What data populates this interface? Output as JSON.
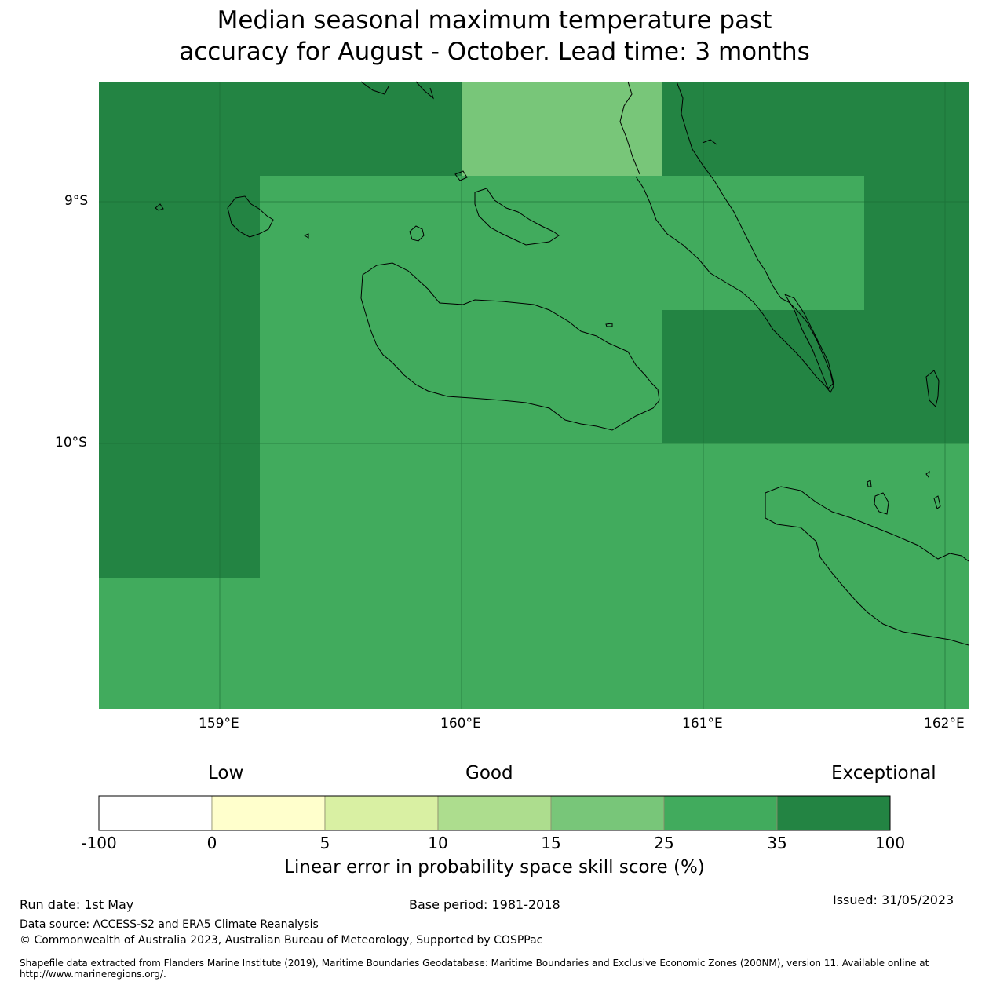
{
  "title": {
    "line1": "Median seasonal maximum temperature past",
    "line2": "accuracy for August - October. Lead time: 3 months"
  },
  "map": {
    "lon_range": [
      158.5,
      162.1
    ],
    "lat_range": [
      -11.1,
      -8.5
    ],
    "lon_ticks": [
      "159°E",
      "160°E",
      "161°E",
      "162°E"
    ],
    "lat_ticks": [
      "9°S",
      "10°S"
    ],
    "gridlines": true,
    "cells": [
      {
        "lon": [
          158.5,
          159.17
        ],
        "lat": [
          -10.56,
          -8.5
        ],
        "category": "35-100",
        "color": "#238443"
      },
      {
        "lon": [
          159.17,
          160.0
        ],
        "lat": [
          -8.89,
          -8.5
        ],
        "category": "35-100",
        "color": "#238443"
      },
      {
        "lon": [
          160.0,
          160.83
        ],
        "lat": [
          -8.89,
          -8.5
        ],
        "category": "15-25",
        "color": "#78c679"
      },
      {
        "lon": [
          160.83,
          162.1
        ],
        "lat": [
          -8.89,
          -8.5
        ],
        "category": "35-100",
        "color": "#238443"
      },
      {
        "lon": [
          161.67,
          162.1
        ],
        "lat": [
          -10.0,
          -8.89
        ],
        "category": "35-100",
        "color": "#238443"
      },
      {
        "lon": [
          160.83,
          161.67
        ],
        "lat": [
          -10.0,
          -9.44
        ],
        "category": "35-100",
        "color": "#238443"
      },
      {
        "lon": [
          158.5,
          162.1
        ],
        "lat": [
          -11.1,
          -8.5
        ],
        "category": "25-35",
        "color": "#41ab5d"
      }
    ]
  },
  "colorbar": {
    "categories": [
      "Low",
      "Good",
      "Exceptional"
    ],
    "ticks": [
      "-100",
      "0",
      "5",
      "10",
      "15",
      "25",
      "35",
      "100"
    ],
    "colors": [
      "#ffffff",
      "#ffffcc",
      "#d9f0a3",
      "#addd8e",
      "#78c679",
      "#41ab5d",
      "#238443"
    ],
    "label": "Linear error in probability space skill score (%)"
  },
  "footer": {
    "run_date": "Run date: 1st May",
    "base_period": "Base period: 1981-2018",
    "issued": "Issued: 31/05/2023",
    "data_source": "Data source: ACCESS-S2 and ERA5 Climate Reanalysis",
    "copyright": "© Commonwealth of Australia 2023, Australian Bureau of Meteorology, Supported by COSPPac",
    "shapefile": "Shapefile data extracted from Flanders Marine Institute (2019), Maritime Boundaries Geodatabase: Maritime Boundaries and Exclusive Economic Zones (200NM), version 11. Available online at http://www.marineregions.org/."
  }
}
